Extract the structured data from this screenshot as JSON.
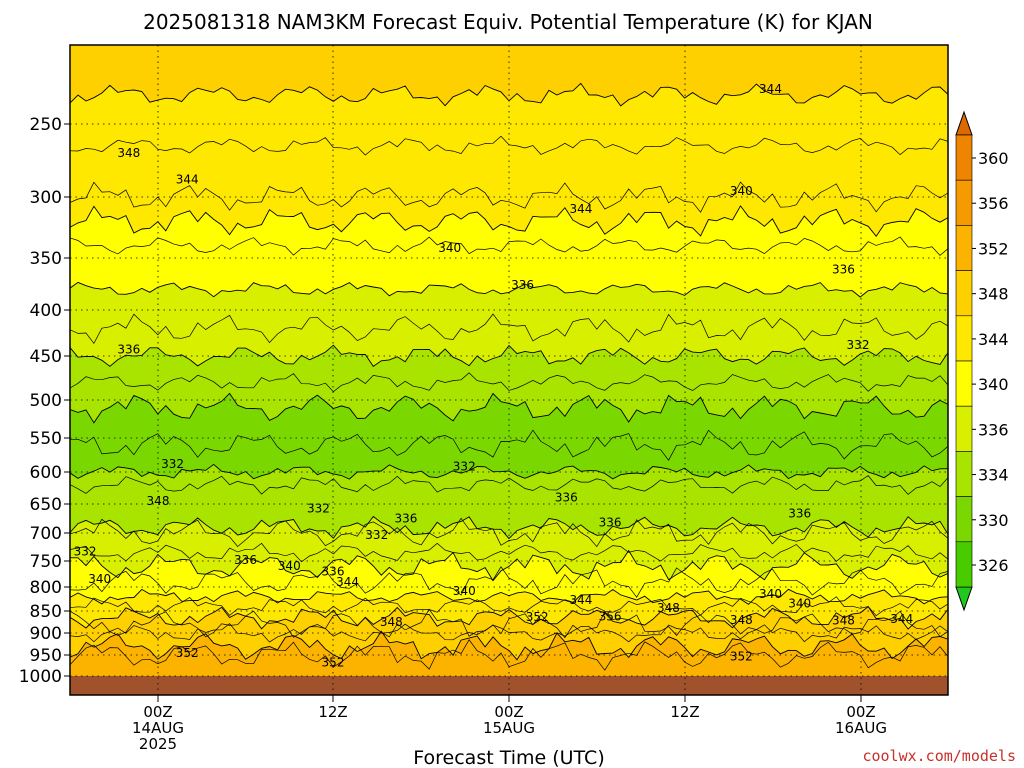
{
  "chart_data": {
    "type": "heatmap",
    "title": "2025081318 NAM3KM Forecast Equiv. Potential Temperature (K) for KJAN",
    "xlabel": "Forecast Time (UTC)",
    "ylabel": "",
    "y_ticks": [
      "250",
      "300",
      "350",
      "400",
      "450",
      "500",
      "550",
      "600",
      "650",
      "700",
      "750",
      "800",
      "850",
      "900",
      "950",
      "1000"
    ],
    "x_ticks": [
      {
        "line1": "00Z",
        "line2": "14AUG",
        "line3": "2025"
      },
      {
        "line1": "12Z",
        "line2": "",
        "line3": ""
      },
      {
        "line1": "00Z",
        "line2": "15AUG",
        "line3": ""
      },
      {
        "line1": "12Z",
        "line2": "",
        "line3": ""
      },
      {
        "line1": "00Z",
        "line2": "16AUG",
        "line3": ""
      }
    ],
    "colorbar_levels": [
      "360",
      "356",
      "352",
      "348",
      "344",
      "340",
      "336",
      "334",
      "330",
      "326"
    ],
    "colorbar_colors": [
      "#dd6a00",
      "#ee8400",
      "#f59a00",
      "#fbb300",
      "#fed000",
      "#ffe800",
      "#ffff00",
      "#d8f000",
      "#a8e400",
      "#7ad800",
      "#48cc00",
      "#20c820"
    ],
    "layers": [
      {
        "p_top": 100,
        "value": 348
      },
      {
        "p_top": 230,
        "value": 344
      },
      {
        "p_top": 320,
        "value": 340
      },
      {
        "p_top": 380,
        "value": 336
      },
      {
        "p_top": 450,
        "value": 334
      },
      {
        "p_top": 510,
        "value": 332
      },
      {
        "p_top": 600,
        "value": 334
      },
      {
        "p_top": 690,
        "value": 336
      },
      {
        "p_top": 760,
        "value": 340
      },
      {
        "p_top": 820,
        "value": 344
      },
      {
        "p_top": 865,
        "value": 348
      },
      {
        "p_top": 930,
        "value": 352
      }
    ],
    "contour_labels": [
      {
        "text": "348",
        "t": -2,
        "p": 270
      },
      {
        "text": "344",
        "t": 2,
        "p": 288
      },
      {
        "text": "344",
        "t": -14,
        "p": 302
      },
      {
        "text": "344",
        "t": 42,
        "p": 226
      },
      {
        "text": "344",
        "t": 29,
        "p": 310
      },
      {
        "text": "340",
        "t": 40,
        "p": 296
      },
      {
        "text": "340",
        "t": 20,
        "p": 342
      },
      {
        "text": "336",
        "t": 47,
        "p": 361
      },
      {
        "text": "336",
        "t": 25,
        "p": 376
      },
      {
        "text": "340",
        "t": -10,
        "p": 431
      },
      {
        "text": "336",
        "t": -7,
        "p": 434
      },
      {
        "text": "336",
        "t": -2,
        "p": 443
      },
      {
        "text": "332",
        "t": 48,
        "p": 438
      },
      {
        "text": "332",
        "t": 56,
        "p": 468
      },
      {
        "text": "332",
        "t": -7,
        "p": 502
      },
      {
        "text": "332",
        "t": 1,
        "p": 588
      },
      {
        "text": "332",
        "t": 21,
        "p": 592
      },
      {
        "text": "336",
        "t": 28,
        "p": 640
      },
      {
        "text": "348",
        "t": 0,
        "p": 645
      },
      {
        "text": "332",
        "t": 11,
        "p": 658
      },
      {
        "text": "336",
        "t": 17,
        "p": 675
      },
      {
        "text": "336",
        "t": 44,
        "p": 666
      },
      {
        "text": "332",
        "t": 15,
        "p": 704
      },
      {
        "text": "336",
        "t": 31,
        "p": 682
      },
      {
        "text": "332",
        "t": -5,
        "p": 733
      },
      {
        "text": "336",
        "t": 6,
        "p": 748
      },
      {
        "text": "340",
        "t": 9,
        "p": 760
      },
      {
        "text": "336",
        "t": 12,
        "p": 770
      },
      {
        "text": "340",
        "t": -4,
        "p": 785
      },
      {
        "text": "344",
        "t": 13,
        "p": 790
      },
      {
        "text": "340",
        "t": 21,
        "p": 808
      },
      {
        "text": "340",
        "t": 42,
        "p": 815
      },
      {
        "text": "344",
        "t": 29,
        "p": 827
      },
      {
        "text": "340",
        "t": 44,
        "p": 834
      },
      {
        "text": "348",
        "t": 35,
        "p": 844
      },
      {
        "text": "352",
        "t": 26,
        "p": 864
      },
      {
        "text": "356",
        "t": 31,
        "p": 862
      },
      {
        "text": "348",
        "t": 40,
        "p": 870
      },
      {
        "text": "348",
        "t": 47,
        "p": 872
      },
      {
        "text": "344",
        "t": 51,
        "p": 868
      },
      {
        "text": "348",
        "t": 16,
        "p": 875
      },
      {
        "text": "356",
        "t": 57,
        "p": 882
      },
      {
        "text": "352",
        "t": 2,
        "p": 945
      },
      {
        "text": "352",
        "t": 40,
        "p": 953
      },
      {
        "text": "352",
        "t": 12,
        "p": 968
      }
    ]
  },
  "credit": "coolwx.com/models"
}
